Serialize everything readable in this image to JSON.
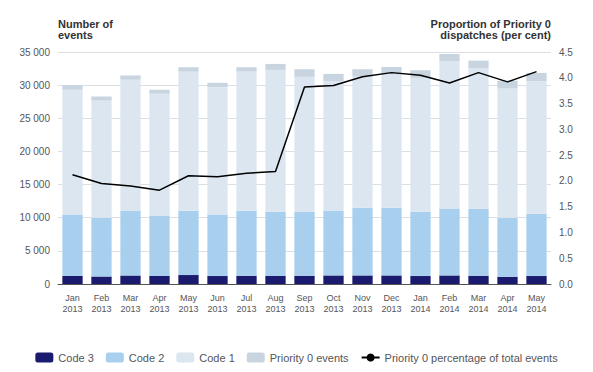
{
  "chart_data": {
    "type": "bar",
    "categories": [
      "Jan\n2013",
      "Feb\n2013",
      "Mar\n2013",
      "Apr\n2013",
      "May\n2013",
      "Jun\n2013",
      "Jul\n2013",
      "Aug\n2013",
      "Sep\n2013",
      "Oct\n2013",
      "Nov\n2013",
      "Dec\n2013",
      "Jan\n2014",
      "Feb\n2014",
      "Mar\n2014",
      "Apr\n2014",
      "May\n2014"
    ],
    "series": [
      {
        "name": "Code 3",
        "color": "#1a1a6e",
        "values": [
          1200,
          1150,
          1300,
          1250,
          1350,
          1200,
          1250,
          1250,
          1250,
          1300,
          1300,
          1300,
          1200,
          1300,
          1250,
          1100,
          1200
        ]
      },
      {
        "name": "Code 2",
        "color": "#a8d0ee",
        "values": [
          9300,
          8850,
          9700,
          9100,
          9700,
          9300,
          9800,
          9650,
          9600,
          9700,
          10200,
          10200,
          9700,
          10100,
          10100,
          8900,
          9400
        ]
      },
      {
        "name": "Code 1",
        "color": "#dce6f0",
        "values": [
          18800,
          17700,
          19800,
          18350,
          21000,
          19200,
          21000,
          21400,
          20400,
          19600,
          19800,
          20100,
          20200,
          22200,
          21200,
          19500,
          20000
        ]
      },
      {
        "name": "Priority 0 events",
        "color": "#c8d4e0",
        "values": [
          700,
          600,
          650,
          600,
          650,
          650,
          650,
          900,
          1150,
          1100,
          1100,
          1150,
          1150,
          1100,
          1150,
          1150,
          1250
        ]
      },
      {
        "name": "Priority 0 percentage of total events",
        "type": "line",
        "axis": "y2",
        "color": "#000000",
        "values": [
          2.12,
          1.95,
          1.9,
          1.82,
          2.1,
          2.08,
          2.15,
          2.18,
          3.82,
          3.85,
          4.02,
          4.1,
          4.05,
          3.9,
          4.1,
          3.92,
          4.12
        ]
      }
    ],
    "stacked": true,
    "ylabel": "Number of\nevents",
    "y2label": "Proportion of Priority 0\ndispatches (per cent)",
    "ylim": [
      0,
      35000
    ],
    "yticks": [
      0,
      {
        "value": 5000,
        "label": "5 000"
      },
      {
        "value": 10000,
        "label": "10 000"
      },
      {
        "value": 15000,
        "label": "15 000"
      },
      {
        "value": 20000,
        "label": "20 000"
      },
      {
        "value": 25000,
        "label": "25 000"
      },
      {
        "value": 30000,
        "label": "30 000"
      },
      {
        "value": 35000,
        "label": "35 000"
      }
    ],
    "y2lim": [
      0,
      4.5
    ],
    "y2ticks": [
      {
        "value": 0.0,
        "label": "0.0"
      },
      0.5,
      {
        "value": 1.0,
        "label": "1.0"
      },
      1.5,
      {
        "value": 2.0,
        "label": "2.0"
      },
      2.5,
      {
        "value": 3.0,
        "label": "3.0"
      },
      3.5,
      {
        "value": 4.0,
        "label": "4.0"
      },
      4.5
    ],
    "grid": true,
    "legend": "bottom"
  }
}
